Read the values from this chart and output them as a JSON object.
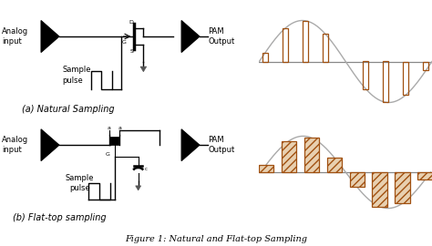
{
  "title": "Figure 1: Natural and Flat-top Sampling",
  "label_a": "(a) Natural Sampling",
  "label_b": "(b) Flat-top sampling",
  "analog_input": "Analog\ninput",
  "pam_output": "PAM\nOutput",
  "sample_pulse": "Sample\npulse",
  "wave_color": "#A05010",
  "sine_color": "#AAAAAA",
  "hatch_fill": "#E8D0B0",
  "bg_color": "#FFFFFF",
  "text_color": "#000000",
  "fig_width": 4.74,
  "fig_height": 2.7,
  "dpi": 100
}
